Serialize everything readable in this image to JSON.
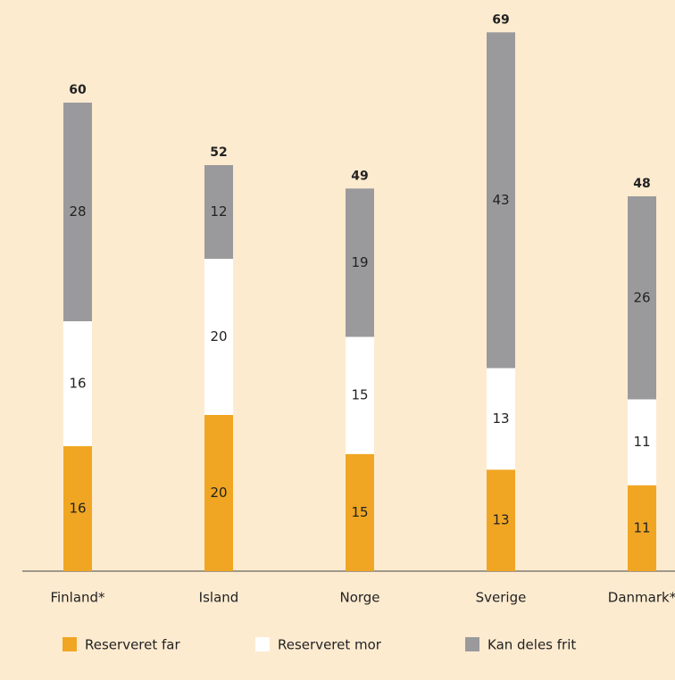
{
  "chart_data": {
    "type": "stacked-bar",
    "categories": [
      "Finland*",
      "Island",
      "Norge",
      "Sverige",
      "Danmark*"
    ],
    "series": [
      {
        "name": "Reserveret far",
        "color": "#f0a623",
        "values": [
          16,
          20,
          15,
          13,
          11
        ]
      },
      {
        "name": "Reserveret mor",
        "color": "#ffffff",
        "values": [
          16,
          20,
          15,
          13,
          11
        ]
      },
      {
        "name": "Kan deles frit",
        "color": "#9a9a9c",
        "values": [
          28,
          12,
          19,
          43,
          26
        ]
      }
    ],
    "totals": [
      60,
      52,
      49,
      69,
      48
    ],
    "legend": "bottom"
  }
}
